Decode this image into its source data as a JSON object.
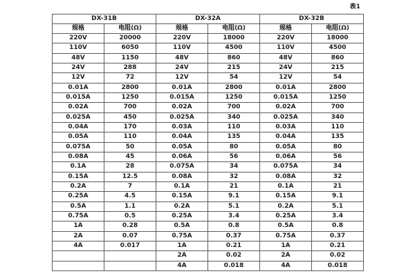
{
  "table_label": "表1",
  "table": {
    "groups": [
      {
        "name": "DX-31B",
        "spec_header": "规格",
        "resistance_header": "电阻(Ω)"
      },
      {
        "name": "DX-32A",
        "spec_header": "规格",
        "resistance_header": "电阻(Ω)"
      },
      {
        "name": "DX-32B",
        "spec_header": "规格",
        "resistance_header": "电阻(Ω)"
      }
    ],
    "rows": [
      [
        "220V",
        "20000",
        "220V",
        "18000",
        "220V",
        "18000"
      ],
      [
        "110V",
        "6050",
        "110V",
        "4500",
        "110V",
        "4500"
      ],
      [
        "48V",
        "1150",
        "48V",
        "860",
        "48V",
        "860"
      ],
      [
        "24V",
        "288",
        "24V",
        "215",
        "24V",
        "215"
      ],
      [
        "12V",
        "72",
        "12V",
        "54",
        "12V",
        "54"
      ],
      [
        "0.01A",
        "2800",
        "0.01A",
        "2800",
        "0.01A",
        "2800"
      ],
      [
        "0.015A",
        "1250",
        "0.015A",
        "1250",
        "0.015A",
        "1250"
      ],
      [
        "0.02A",
        "700",
        "0.02A",
        "700",
        "0.02A",
        "700"
      ],
      [
        "0.025A",
        "450",
        "0.025A",
        "340",
        "0.025A",
        "340"
      ],
      [
        "0.04A",
        "170",
        "0.03A",
        "110",
        "0.03A",
        "110"
      ],
      [
        "0.05A",
        "110",
        "0.04A",
        "135",
        "0.04A",
        "135"
      ],
      [
        "0.075A",
        "50",
        "0.05A",
        "80",
        "0.05A",
        "80"
      ],
      [
        "0.08A",
        "45",
        "0.06A",
        "56",
        "0.06A",
        "56"
      ],
      [
        "0.1A",
        "28",
        "0.075A",
        "34",
        "0.075A",
        "34"
      ],
      [
        "0.15A",
        "12.5",
        "0.08A",
        "32",
        "0.08A",
        "32"
      ],
      [
        "0.2A",
        "7",
        "0.1A",
        "21",
        "0.1A",
        "21"
      ],
      [
        "0.25A",
        "4.5",
        "0.15A",
        "9.1",
        "0.15A",
        "9.1"
      ],
      [
        "0.5A",
        "1.1",
        "0.2A",
        "5.1",
        "0.2A",
        "5.1"
      ],
      [
        "0.75A",
        "0.5",
        "0.25A",
        "3.4",
        "0.25A",
        "3.4"
      ],
      [
        "1A",
        "0.28",
        "0.5A",
        "0.8",
        "0.5A",
        "0.8"
      ],
      [
        "2A",
        "0.07",
        "0.75A",
        "0.37",
        "0.75A",
        "0.37"
      ],
      [
        "4A",
        "0.017",
        "1A",
        "0.21",
        "1A",
        "0.21"
      ],
      [
        "",
        "",
        "2A",
        "0.02",
        "2A",
        "0.02"
      ],
      [
        "",
        "",
        "4A",
        "0.018",
        "4A",
        "0.018"
      ]
    ]
  }
}
